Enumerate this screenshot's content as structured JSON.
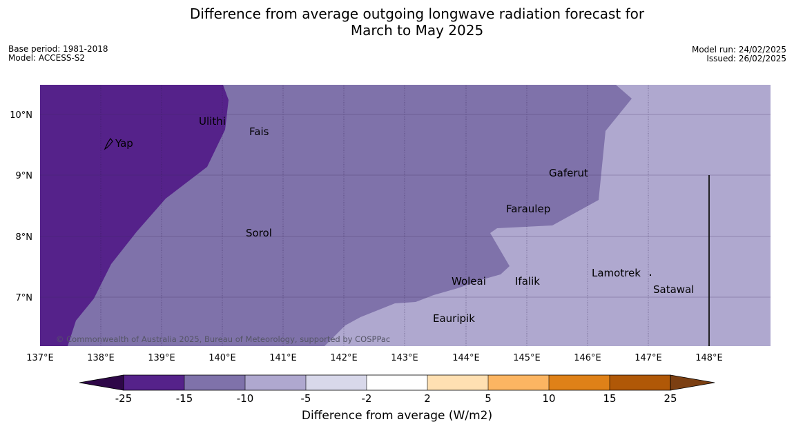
{
  "title": {
    "line1": "Difference from average outgoing longwave radiation forecast for",
    "line2": "March to May 2025"
  },
  "info_left": {
    "base_period": "Base period: 1981-2018",
    "model": "Model: ACCESS-S2"
  },
  "info_right": {
    "model_run": "Model run: 24/02/2025",
    "issued": "Issued: 26/02/2025"
  },
  "map": {
    "lat_labels": [
      "10°N",
      "9°N",
      "8°N",
      "7°N"
    ],
    "lon_labels": [
      "137°E",
      "138°E",
      "139°E",
      "140°E",
      "141°E",
      "142°E",
      "143°E",
      "144°E",
      "145°E",
      "146°E",
      "147°E",
      "148°E"
    ],
    "places": [
      {
        "name": "Ulithi",
        "lon": 139.75,
        "lat": 9.9
      },
      {
        "name": "Fais",
        "lon": 140.5,
        "lat": 9.75
      },
      {
        "name": "Yap",
        "lon": 138.1,
        "lat": 9.5
      },
      {
        "name": "Gaferut",
        "lon": 145.4,
        "lat": 9.05
      },
      {
        "name": "Faraulep",
        "lon": 144.6,
        "lat": 8.45
      },
      {
        "name": "Sorol",
        "lon": 140.4,
        "lat": 8.05
      },
      {
        "name": "Lamotrek",
        "lon": 146.1,
        "lat": 7.4
      },
      {
        "name": "Woleai",
        "lon": 143.9,
        "lat": 7.3
      },
      {
        "name": "Ifalik",
        "lon": 144.95,
        "lat": 7.3
      },
      {
        "name": "Satawal",
        "lon": 147.1,
        "lat": 7.15
      },
      {
        "name": "Eauripik",
        "lon": 143.45,
        "lat": 6.65
      }
    ],
    "copyright": "© Commonwealth of Australia 2025, Bureau of Meteorology, supported by COSPPac",
    "colors": {
      "band_lt_-15": "#55228a",
      "band_-15_-10": "#7f72aa",
      "band_-10_-5": "#afa8cf",
      "border": "#4c2a78"
    }
  },
  "colorbar": {
    "label": "Difference from average (W/m2)",
    "ticks": [
      "-25",
      "-15",
      "-10",
      "-5",
      "-2",
      "2",
      "5",
      "10",
      "15",
      "25"
    ],
    "colors": [
      "#55228a",
      "#7f72aa",
      "#afa8cf",
      "#d8d8ea",
      "#ffffff",
      "#ffe0b2",
      "#fcb562",
      "#df8118",
      "#b05807"
    ],
    "under_color": "#2e0748",
    "over_color": "#7b3f12"
  }
}
